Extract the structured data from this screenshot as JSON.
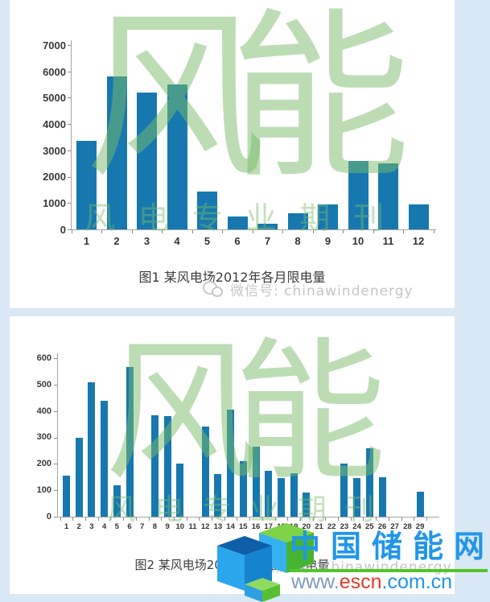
{
  "page": {
    "background_color": "#d9e8f5",
    "panel_color": "#ffffff"
  },
  "chart_data": [
    {
      "type": "bar",
      "title": "图1 某风电场2012年各月限电量",
      "categories": [
        "1",
        "2",
        "3",
        "4",
        "5",
        "6",
        "7",
        "8",
        "9",
        "10",
        "11",
        "12"
      ],
      "values": [
        3350,
        5800,
        5200,
        5500,
        1450,
        480,
        200,
        600,
        950,
        2600,
        2500,
        950
      ],
      "xlabel": "",
      "ylabel": "",
      "ylim": [
        0,
        7000
      ],
      "ystep": 1000,
      "bar_color": "#1778b0",
      "grid": false,
      "legend": "none"
    },
    {
      "type": "bar",
      "title": "图2 某风电场2012年2月各日限电量",
      "categories": [
        "1",
        "2",
        "3",
        "4",
        "5",
        "6",
        "7",
        "8",
        "9",
        "10",
        "11",
        "12",
        "13",
        "14",
        "15",
        "16",
        "17",
        "18",
        "19",
        "20",
        "21",
        "22",
        "23",
        "24",
        "25",
        "26",
        "27",
        "28",
        "29"
      ],
      "values": [
        155,
        300,
        510,
        440,
        120,
        565,
        0,
        385,
        380,
        200,
        0,
        340,
        160,
        405,
        210,
        265,
        175,
        145,
        165,
        90,
        0,
        0,
        200,
        145,
        260,
        150,
        0,
        0,
        95
      ],
      "xlabel": "",
      "ylabel": "",
      "ylim": [
        0,
        600
      ],
      "ystep": 100,
      "bar_color": "#1778b0",
      "grid": false,
      "legend": "none"
    }
  ],
  "watermark": {
    "brand": "风能",
    "tagline_chars": [
      "风",
      "电",
      "专",
      "业",
      "期",
      "刊"
    ],
    "wechat_label": "微信号: chinawindenergy",
    "color": "#79bc6a"
  },
  "escn": {
    "site_name": "中国储能网",
    "url_prefix": "www.",
    "url_highlight": "escn",
    "url_suffix": ".com.cn",
    "site_color": "#2196e8",
    "highlight_color": "#e23b2c",
    "prefix_color": "#7d9cba",
    "underline_color": "#52c62a"
  }
}
